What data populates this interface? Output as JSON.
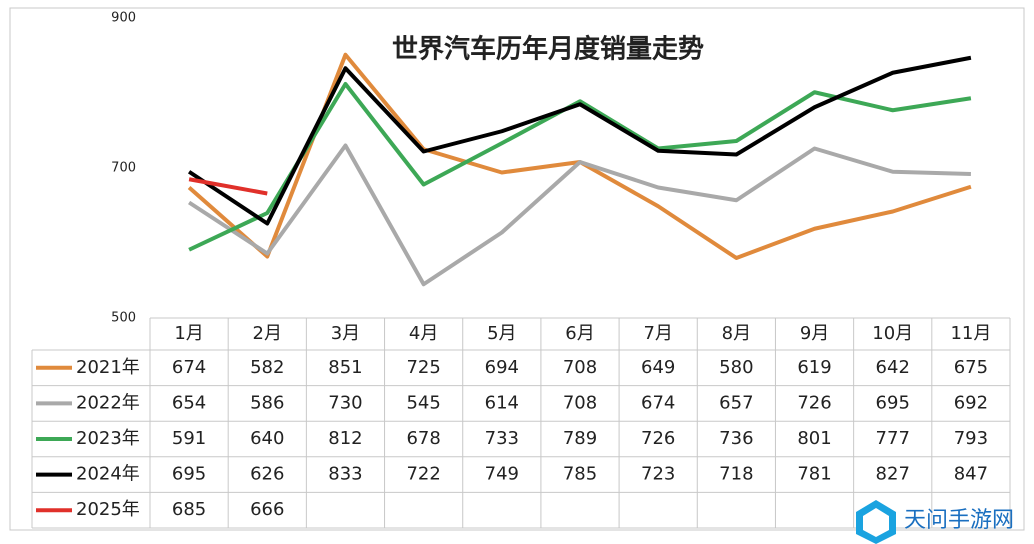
{
  "chart_data": {
    "type": "line",
    "title": "世界汽车历年月度销量走势",
    "categories": [
      "1月",
      "2月",
      "3月",
      "4月",
      "5月",
      "6月",
      "7月",
      "8月",
      "9月",
      "10月",
      "11月"
    ],
    "series": [
      {
        "name": "2021年",
        "color": "#e08a3c",
        "values": [
          674,
          582,
          851,
          725,
          694,
          708,
          649,
          580,
          619,
          642,
          675
        ]
      },
      {
        "name": "2022年",
        "color": "#a9a9a9",
        "values": [
          654,
          586,
          730,
          545,
          614,
          708,
          674,
          657,
          726,
          695,
          692
        ]
      },
      {
        "name": "2023年",
        "color": "#3da856",
        "values": [
          591,
          640,
          812,
          678,
          733,
          789,
          726,
          736,
          801,
          777,
          793
        ]
      },
      {
        "name": "2024年",
        "color": "#000000",
        "values": [
          695,
          626,
          833,
          722,
          749,
          785,
          723,
          718,
          781,
          827,
          847
        ]
      },
      {
        "name": "2025年",
        "color": "#e0302a",
        "values": [
          685,
          666,
          null,
          null,
          null,
          null,
          null,
          null,
          null,
          null,
          null
        ]
      }
    ],
    "ylim": [
      500,
      900
    ],
    "yticks": [
      500,
      700,
      900
    ],
    "grid": false,
    "watermark": "天问手游网"
  }
}
